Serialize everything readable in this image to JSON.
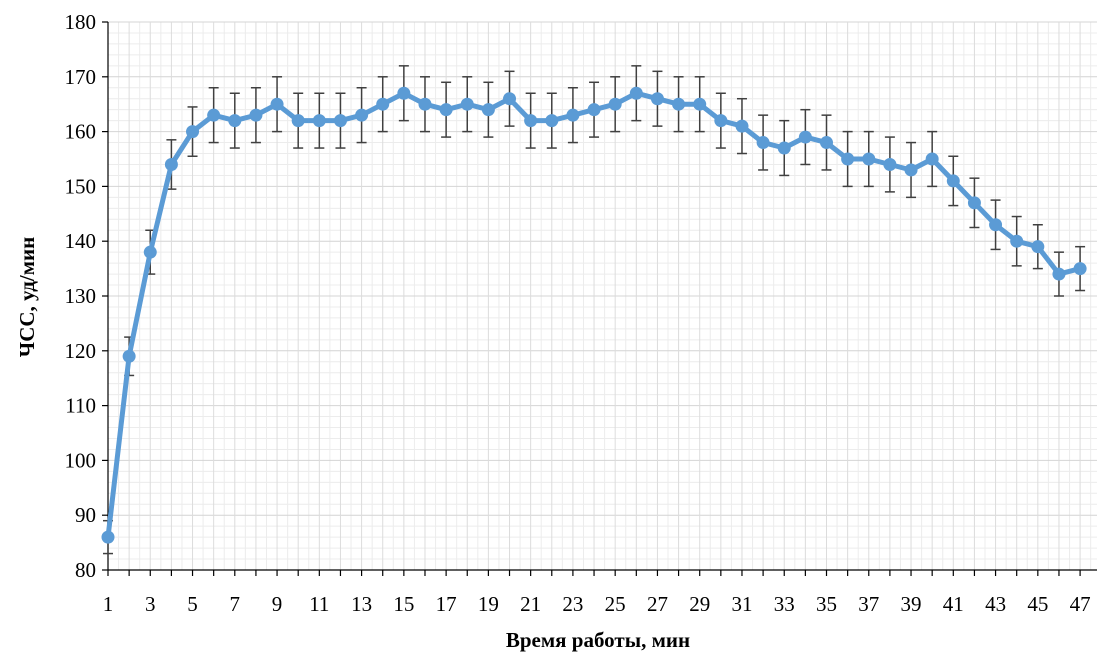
{
  "chart_data": {
    "type": "line",
    "xlabel": "Время работы, мин",
    "ylabel": "ЧСС, уд/мин",
    "ylim": [
      80,
      180
    ],
    "xlim": [
      1,
      47.8
    ],
    "y_ticks": [
      80,
      90,
      100,
      110,
      120,
      130,
      140,
      150,
      160,
      170,
      180
    ],
    "x_ticks": [
      1,
      3,
      5,
      7,
      9,
      11,
      13,
      15,
      17,
      19,
      21,
      23,
      25,
      27,
      29,
      31,
      33,
      35,
      37,
      39,
      41,
      43,
      45,
      47
    ],
    "grid": true,
    "legend": "none",
    "line_color": "#5B9BD5",
    "error_bar_color": "#404040",
    "series": [
      {
        "x": [
          1,
          2,
          3,
          4,
          5,
          6,
          7,
          8,
          9,
          10,
          11,
          12,
          13,
          14,
          15,
          16,
          17,
          18,
          19,
          20,
          21,
          22,
          23,
          24,
          25,
          26,
          27,
          28,
          29,
          30,
          31,
          32,
          33,
          34,
          35,
          36,
          37,
          38,
          39,
          40,
          41,
          42,
          43,
          44,
          45,
          46,
          47
        ],
        "values": [
          86,
          119,
          138,
          154,
          160,
          163,
          162,
          163,
          165,
          162,
          162,
          162,
          163,
          165,
          167,
          165,
          164,
          165,
          164,
          166,
          162,
          162,
          163,
          164,
          165,
          167,
          166,
          165,
          165,
          162,
          161,
          158,
          157,
          159,
          158,
          155,
          155,
          154,
          153,
          155,
          151,
          147,
          143,
          140,
          139,
          134,
          135
        ],
        "error": [
          3,
          3.5,
          4,
          4.5,
          4.5,
          5,
          5,
          5,
          5,
          5,
          5,
          5,
          5,
          5,
          5,
          5,
          5,
          5,
          5,
          5,
          5,
          5,
          5,
          5,
          5,
          5,
          5,
          5,
          5,
          5,
          5,
          5,
          5,
          5,
          5,
          5,
          5,
          5,
          5,
          5,
          4.5,
          4.5,
          4.5,
          4.5,
          4,
          4,
          4
        ]
      }
    ]
  }
}
